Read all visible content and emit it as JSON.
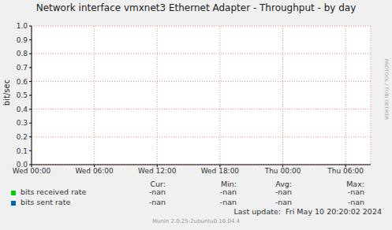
{
  "chart_data": {
    "type": "line",
    "title": "Network interface vmxnet3 Ethernet Adapter - Throughput - by day",
    "y_label": "bit/sec",
    "x": [
      0,
      6,
      12,
      18,
      24,
      30
    ],
    "series": [
      {
        "name": "bits received rate",
        "color": "#00cc00",
        "values": [
          null,
          null,
          null,
          null,
          null,
          null
        ],
        "stats": [
          "-nan",
          "-nan",
          "-nan",
          "-nan"
        ]
      },
      {
        "name": "bits sent rate",
        "color": "#0066b3",
        "values": [
          null,
          null,
          null,
          null,
          null,
          null
        ],
        "stats": [
          "-nan",
          "-nan",
          "-nan",
          "-nan"
        ]
      }
    ],
    "stats_columns": [
      "Cur:",
      "Min:",
      "Avg:",
      "Max:"
    ],
    "xlim": [
      0,
      32.4
    ],
    "xticks": [
      {
        "value": 0,
        "label": "Wed 00:00"
      },
      {
        "value": 6,
        "label": "Wed 06:00"
      },
      {
        "value": 12,
        "label": "Wed 12:00"
      },
      {
        "value": 18,
        "label": "Wed 18:00"
      },
      {
        "value": 24,
        "label": "Thu 00:00"
      },
      {
        "value": 30,
        "label": "Thu 06:00"
      }
    ],
    "ylim": [
      0,
      1
    ],
    "yticks": [
      {
        "value": 0,
        "label": "0.0"
      },
      {
        "value": 0.1,
        "label": "0.1"
      },
      {
        "value": 0.2,
        "label": "0.2"
      },
      {
        "value": 0.3,
        "label": "0.3"
      },
      {
        "value": 0.4,
        "label": "0.4"
      },
      {
        "value": 0.5,
        "label": "0.5"
      },
      {
        "value": 0.6,
        "label": "0.6"
      },
      {
        "value": 0.7,
        "label": "0.7"
      },
      {
        "value": 0.8,
        "label": "0.8"
      },
      {
        "value": 0.9,
        "label": "0.9"
      },
      {
        "value": 1,
        "label": "1.0"
      }
    ],
    "grid": true,
    "last_update": "Last update:  Fri May 10 20:20:02 2024",
    "footer": "Munin 2.0.25-2ubuntu0.16.04.4",
    "side_label": "RRDTOOL / TOBI OETIKER"
  }
}
